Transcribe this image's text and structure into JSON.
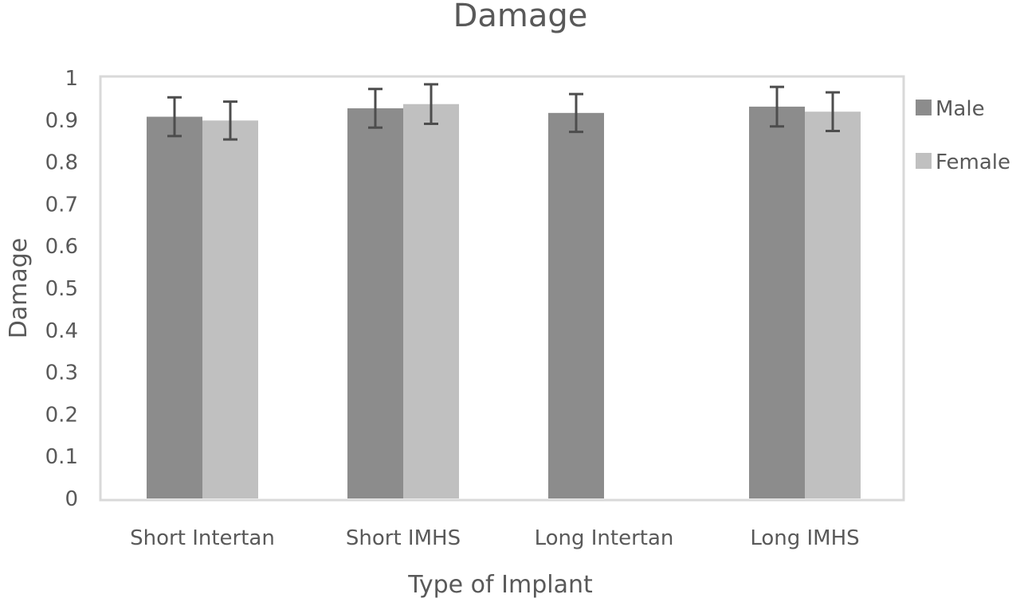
{
  "chart_data": {
    "type": "bar",
    "title": "Damage",
    "xlabel": "Type of Implant",
    "ylabel": "Damage",
    "categories": [
      "Short Intertan",
      "Short IMHS",
      "Long Intertan",
      "Long IMHS"
    ],
    "series": [
      {
        "name": "Male",
        "color": "#8c8c8c",
        "values": [
          0.908,
          0.928,
          0.917,
          0.932
        ],
        "errors": [
          0.046,
          0.046,
          0.045,
          0.047
        ]
      },
      {
        "name": "Female",
        "color": "#c0c0c0",
        "values": [
          0.899,
          0.938,
          null,
          0.92
        ],
        "errors": [
          0.045,
          0.047,
          null,
          0.046
        ]
      }
    ],
    "ylim": [
      0,
      1
    ],
    "yticks": [
      "0",
      "0.1",
      "0.2",
      "0.3",
      "0.4",
      "0.5",
      "0.6",
      "0.7",
      "0.8",
      "0.9",
      "1"
    ],
    "grid": false,
    "legend_position": "right"
  }
}
